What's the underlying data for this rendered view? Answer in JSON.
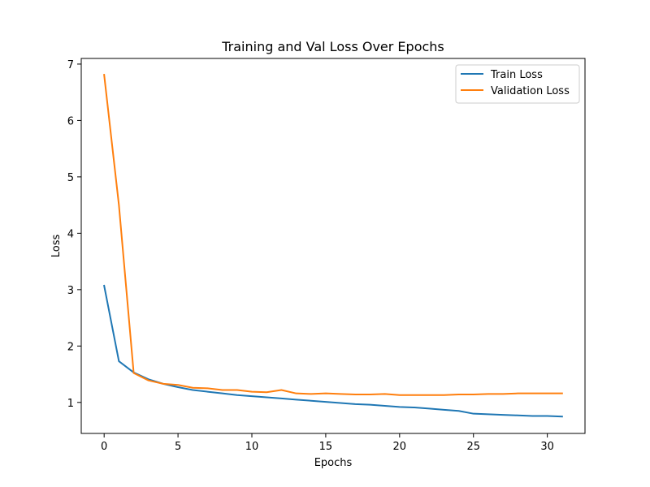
{
  "chart_data": {
    "type": "line",
    "title": "Training and Val Loss Over Epochs",
    "xlabel": "Epochs",
    "ylabel": "Loss",
    "xlim": [
      -1.55,
      32.55
    ],
    "ylim": [
      0.45,
      7.1
    ],
    "xticks": [
      0,
      5,
      10,
      15,
      20,
      25,
      30
    ],
    "yticks": [
      1,
      2,
      3,
      4,
      5,
      6,
      7
    ],
    "grid": false,
    "legend_position": "top-right",
    "x": [
      0,
      1,
      2,
      3,
      4,
      5,
      6,
      7,
      8,
      9,
      10,
      11,
      12,
      13,
      14,
      15,
      16,
      17,
      18,
      19,
      20,
      21,
      22,
      23,
      24,
      25,
      26,
      27,
      28,
      29,
      30,
      31
    ],
    "series": [
      {
        "name": "Train Loss",
        "color": "#1f77b4",
        "values": [
          3.07,
          1.73,
          1.53,
          1.41,
          1.33,
          1.27,
          1.22,
          1.19,
          1.16,
          1.13,
          1.11,
          1.09,
          1.07,
          1.05,
          1.03,
          1.01,
          0.99,
          0.97,
          0.96,
          0.94,
          0.92,
          0.91,
          0.89,
          0.87,
          0.85,
          0.8,
          0.79,
          0.78,
          0.77,
          0.76,
          0.76,
          0.75
        ]
      },
      {
        "name": "Validation Loss",
        "color": "#ff7f0e",
        "values": [
          6.81,
          4.5,
          1.52,
          1.39,
          1.33,
          1.31,
          1.26,
          1.25,
          1.22,
          1.22,
          1.19,
          1.18,
          1.22,
          1.16,
          1.15,
          1.16,
          1.15,
          1.14,
          1.14,
          1.15,
          1.13,
          1.13,
          1.13,
          1.13,
          1.14,
          1.14,
          1.15,
          1.15,
          1.16,
          1.16,
          1.16,
          1.16
        ]
      }
    ]
  }
}
